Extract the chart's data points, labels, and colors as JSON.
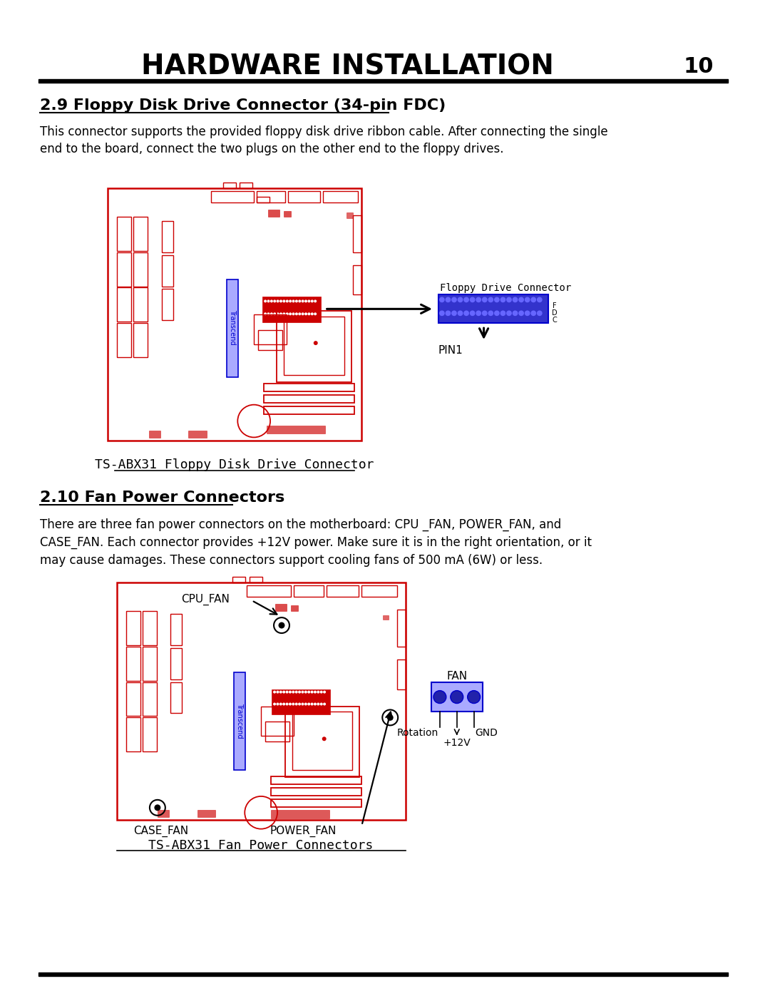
{
  "title": "HARDWARE INSTALLATION",
  "page_num": "10",
  "section1_heading": "2.9 Floppy Disk Drive Connector (34-pin FDC)",
  "section1_text1": "This connector supports the provided floppy disk drive ribbon cable. After connecting the single",
  "section1_text2": "end to the board, connect the two plugs on the other end to the floppy drives.",
  "section1_caption": "TS-ABX31 Floppy Disk Drive Connector",
  "fdc_label": "Floppy Drive Connector",
  "fdc_side_label": "FDC",
  "pin1_label": "PIN1",
  "section2_heading": "2.10 Fan Power Connectors",
  "section2_text1": "There are three fan power connectors on the motherboard: CPU _FAN, POWER_FAN, and",
  "section2_text2": "CASE_FAN. Each connector provides +12V power. Make sure it is in the right orientation, or it",
  "section2_text3": "may cause damages. These connectors support cooling fans of 500 mA (6W) or less.",
  "section2_caption": "TS-ABX31 Fan Power Connectors",
  "cpu_fan_label": "CPU_FAN",
  "case_fan_label": "CASE_FAN",
  "power_fan_label": "POWER_FAN",
  "fan_label": "FAN",
  "rotation_label": "Rotation",
  "gnd_label": "GND",
  "plus12v_label": "+12V",
  "transcend_label": "Transcend",
  "bg_color": "#ffffff",
  "text_color": "#000000",
  "red_color": "#cc0000",
  "blue_color": "#0000cc",
  "blue_fill": "#aaaaff",
  "blue_dark": "#2222aa",
  "blue_connector": "#3333cc",
  "blue_pin": "#6666ff"
}
